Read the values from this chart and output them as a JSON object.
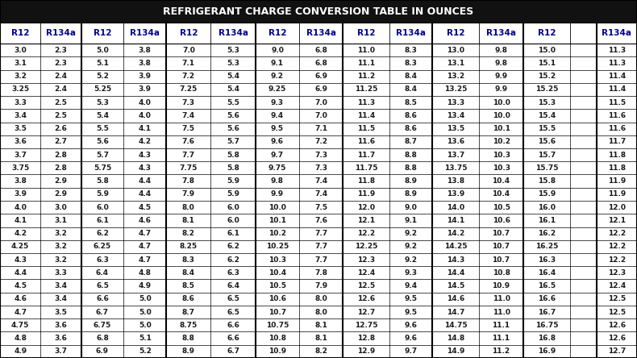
{
  "title": "REFRIGERANT CHARGE CONVERSION TABLE IN OUNCES",
  "title_bg": "#111111",
  "title_color": "#ffffff",
  "header_color": "#00008B",
  "text_color": "#1a1a1a",
  "col_headers": [
    "R12",
    "R134a",
    "R12",
    "R134a",
    "R12",
    "R134a",
    "R12",
    "R134a",
    "R12",
    "R134a",
    "R12",
    "R134a",
    "R12",
    "",
    "R134a"
  ],
  "rows": [
    [
      "3.0",
      "2.3",
      "5.0",
      "3.8",
      "7.0",
      "5.3",
      "9.0",
      "6.8",
      "11.0",
      "8.3",
      "13.0",
      "9.8",
      "15.0",
      "",
      "11.3"
    ],
    [
      "3.1",
      "2.3",
      "5.1",
      "3.8",
      "7.1",
      "5.3",
      "9.1",
      "6.8",
      "11.1",
      "8.3",
      "13.1",
      "9.8",
      "15.1",
      "",
      "11.3"
    ],
    [
      "3.2",
      "2.4",
      "5.2",
      "3.9",
      "7.2",
      "5.4",
      "9.2",
      "6.9",
      "11.2",
      "8.4",
      "13.2",
      "9.9",
      "15.2",
      "",
      "11.4"
    ],
    [
      "3.25",
      "2.4",
      "5.25",
      "3.9",
      "7.25",
      "5.4",
      "9.25",
      "6.9",
      "11.25",
      "8.4",
      "13.25",
      "9.9",
      "15.25",
      "",
      "11.4"
    ],
    [
      "3.3",
      "2.5",
      "5.3",
      "4.0",
      "7.3",
      "5.5",
      "9.3",
      "7.0",
      "11.3",
      "8.5",
      "13.3",
      "10.0",
      "15.3",
      "",
      "11.5"
    ],
    [
      "3.4",
      "2.5",
      "5.4",
      "4.0",
      "7.4",
      "5.6",
      "9.4",
      "7.0",
      "11.4",
      "8.6",
      "13.4",
      "10.0",
      "15.4",
      "",
      "11.6"
    ],
    [
      "3.5",
      "2.6",
      "5.5",
      "4.1",
      "7.5",
      "5.6",
      "9.5",
      "7.1",
      "11.5",
      "8.6",
      "13.5",
      "10.1",
      "15.5",
      "",
      "11.6"
    ],
    [
      "3.6",
      "2.7",
      "5.6",
      "4.2",
      "7.6",
      "5.7",
      "9.6",
      "7.2",
      "11.6",
      "8.7",
      "13.6",
      "10.2",
      "15.6",
      "",
      "11.7"
    ],
    [
      "3.7",
      "2.8",
      "5.7",
      "4.3",
      "7.7",
      "5.8",
      "9.7",
      "7.3",
      "11.7",
      "8.8",
      "13.7",
      "10.3",
      "15.7",
      "",
      "11.8"
    ],
    [
      "3.75",
      "2.8",
      "5.75",
      "4.3",
      "7.75",
      "5.8",
      "9.75",
      "7.3",
      "11.75",
      "8.8",
      "13.75",
      "10.3",
      "15.75",
      "",
      "11.8"
    ],
    [
      "3.8",
      "2.9",
      "5.8",
      "4.4",
      "7.8",
      "5.9",
      "9.8",
      "7.4",
      "11.8",
      "8.9",
      "13.8",
      "10.4",
      "15.8",
      "",
      "11.9"
    ],
    [
      "3.9",
      "2.9",
      "5.9",
      "4.4",
      "7.9",
      "5.9",
      "9.9",
      "7.4",
      "11.9",
      "8.9",
      "13.9",
      "10.4",
      "15.9",
      "",
      "11.9"
    ],
    [
      "4.0",
      "3.0",
      "6.0",
      "4.5",
      "8.0",
      "6.0",
      "10.0",
      "7.5",
      "12.0",
      "9.0",
      "14.0",
      "10.5",
      "16.0",
      "",
      "12.0"
    ],
    [
      "4.1",
      "3.1",
      "6.1",
      "4.6",
      "8.1",
      "6.0",
      "10.1",
      "7.6",
      "12.1",
      "9.1",
      "14.1",
      "10.6",
      "16.1",
      "",
      "12.1"
    ],
    [
      "4.2",
      "3.2",
      "6.2",
      "4.7",
      "8.2",
      "6.1",
      "10.2",
      "7.7",
      "12.2",
      "9.2",
      "14.2",
      "10.7",
      "16.2",
      "",
      "12.2"
    ],
    [
      "4.25",
      "3.2",
      "6.25",
      "4.7",
      "8.25",
      "6.2",
      "10.25",
      "7.7",
      "12.25",
      "9.2",
      "14.25",
      "10.7",
      "16.25",
      "",
      "12.2"
    ],
    [
      "4.3",
      "3.2",
      "6.3",
      "4.7",
      "8.3",
      "6.2",
      "10.3",
      "7.7",
      "12.3",
      "9.2",
      "14.3",
      "10.7",
      "16.3",
      "",
      "12.2"
    ],
    [
      "4.4",
      "3.3",
      "6.4",
      "4.8",
      "8.4",
      "6.3",
      "10.4",
      "7.8",
      "12.4",
      "9.3",
      "14.4",
      "10.8",
      "16.4",
      "",
      "12.3"
    ],
    [
      "4.5",
      "3.4",
      "6.5",
      "4.9",
      "8.5",
      "6.4",
      "10.5",
      "7.9",
      "12.5",
      "9.4",
      "14.5",
      "10.9",
      "16.5",
      "",
      "12.4"
    ],
    [
      "4.6",
      "3.4",
      "6.6",
      "5.0",
      "8.6",
      "6.5",
      "10.6",
      "8.0",
      "12.6",
      "9.5",
      "14.6",
      "11.0",
      "16.6",
      "",
      "12.5"
    ],
    [
      "4.7",
      "3.5",
      "6.7",
      "5.0",
      "8.7",
      "6.5",
      "10.7",
      "8.0",
      "12.7",
      "9.5",
      "14.7",
      "11.0",
      "16.7",
      "",
      "12.5"
    ],
    [
      "4.75",
      "3.6",
      "6.75",
      "5.0",
      "8.75",
      "6.6",
      "10.75",
      "8.1",
      "12.75",
      "9.6",
      "14.75",
      "11.1",
      "16.75",
      "",
      "12.6"
    ],
    [
      "4.8",
      "3.6",
      "6.8",
      "5.1",
      "8.8",
      "6.6",
      "10.8",
      "8.1",
      "12.8",
      "9.6",
      "14.8",
      "11.1",
      "16.8",
      "",
      "12.6"
    ],
    [
      "4.9",
      "3.7",
      "6.9",
      "5.2",
      "8.9",
      "6.7",
      "10.9",
      "8.2",
      "12.9",
      "9.7",
      "14.9",
      "11.2",
      "16.9",
      "",
      "12.7"
    ]
  ],
  "col_widths_rel": [
    1.0,
    1.0,
    1.05,
    1.05,
    1.1,
    1.1,
    1.08,
    1.08,
    1.15,
    1.05,
    1.15,
    1.1,
    1.15,
    0.65,
    1.0
  ],
  "thick_dividers_after": [
    1,
    3,
    5,
    7,
    9,
    11,
    13
  ],
  "figsize": [
    7.9,
    4.44
  ],
  "dpi": 100
}
